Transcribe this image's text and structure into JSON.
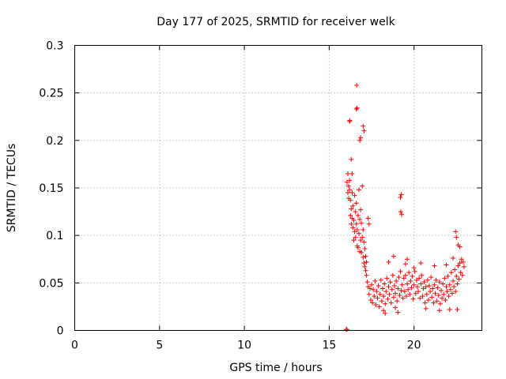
{
  "chart_data": {
    "type": "scatter",
    "title": "Day 177 of 2025, SRMTID for receiver welk",
    "xlabel": "GPS time / hours",
    "ylabel": "SRMTID / TECUs",
    "xlim": [
      0,
      24
    ],
    "ylim": [
      0,
      0.3
    ],
    "xticks": [
      0,
      5,
      10,
      15,
      20
    ],
    "xtick_labels": [
      "0",
      "5",
      "10",
      "15",
      "20"
    ],
    "yticks": [
      0,
      0.05,
      0.1,
      0.15,
      0.2,
      0.25,
      0.3
    ],
    "ytick_labels": [
      "0",
      "0.05",
      "0.1",
      "0.15",
      "0.2",
      "0.25",
      "0.3"
    ],
    "grid": true,
    "marker": "+",
    "series": [
      {
        "name": "SRMTID",
        "color": "#ff0000",
        "x": [
          16.0,
          16.05,
          16.05,
          16.1,
          16.1,
          16.15,
          16.15,
          16.2,
          16.2,
          16.25,
          16.25,
          16.3,
          16.3,
          16.35,
          16.35,
          16.4,
          16.4,
          16.45,
          16.45,
          16.5,
          16.5,
          16.55,
          16.55,
          16.6,
          16.6,
          16.65,
          16.65,
          16.7,
          16.7,
          16.75,
          16.75,
          16.8,
          16.8,
          16.85,
          16.85,
          16.9,
          16.9,
          16.95,
          16.95,
          17.0,
          17.0,
          17.05,
          17.05,
          17.1,
          17.1,
          17.15,
          17.15,
          17.2,
          17.2,
          17.25,
          17.3,
          17.35,
          17.4,
          17.45,
          17.5,
          17.55,
          17.6,
          17.65,
          17.7,
          17.75,
          17.8,
          17.85,
          17.9,
          17.95,
          18.0,
          18.05,
          18.1,
          18.15,
          18.2,
          18.25,
          18.3,
          18.35,
          18.4,
          18.45,
          18.5,
          18.55,
          18.6,
          18.65,
          18.7,
          18.75,
          18.8,
          18.85,
          18.9,
          18.95,
          19.0,
          19.05,
          19.1,
          19.15,
          19.2,
          19.25,
          19.3,
          19.35,
          19.4,
          19.45,
          19.5,
          19.55,
          19.6,
          19.65,
          19.7,
          19.75,
          19.8,
          19.85,
          19.9,
          19.95,
          20.0,
          20.05,
          20.1,
          20.15,
          20.2,
          20.25,
          20.3,
          20.35,
          20.4,
          20.45,
          20.5,
          20.55,
          20.6,
          20.65,
          20.7,
          20.75,
          20.8,
          20.85,
          20.9,
          20.95,
          21.0,
          21.05,
          21.1,
          21.15,
          21.2,
          21.25,
          21.3,
          21.35,
          21.4,
          21.45,
          21.5,
          21.55,
          21.6,
          21.65,
          21.7,
          21.75,
          21.8,
          21.85,
          21.9,
          21.95,
          22.0,
          22.05,
          22.1,
          22.15,
          22.2,
          22.25,
          22.3,
          22.35,
          22.4,
          22.45,
          22.5,
          22.55,
          22.6,
          22.65,
          22.7,
          22.75,
          22.8,
          22.85,
          22.9,
          22.95,
          16.2,
          16.22,
          16.3,
          16.35,
          16.6,
          16.65,
          16.62,
          17.0,
          17.05,
          16.8,
          16.85,
          19.2,
          19.25,
          19.22,
          19.27,
          22.45,
          22.5,
          22.6,
          22.7,
          17.3,
          17.35,
          18.5,
          18.8,
          19.5,
          19.6,
          20.0,
          20.4,
          21.2,
          21.9,
          22.3,
          18.2,
          18.3,
          18.9,
          19.05,
          20.7,
          21.5,
          22.1,
          22.55
        ],
        "y": [
          0.001,
          0.001,
          0.156,
          0.145,
          0.165,
          0.152,
          0.139,
          0.148,
          0.158,
          0.121,
          0.137,
          0.112,
          0.128,
          0.145,
          0.118,
          0.108,
          0.131,
          0.095,
          0.116,
          0.142,
          0.104,
          0.125,
          0.098,
          0.112,
          0.134,
          0.089,
          0.106,
          0.121,
          0.087,
          0.148,
          0.102,
          0.117,
          0.083,
          0.127,
          0.095,
          0.113,
          0.082,
          0.152,
          0.098,
          0.106,
          0.077,
          0.093,
          0.071,
          0.086,
          0.067,
          0.078,
          0.063,
          0.072,
          0.058,
          0.051,
          0.046,
          0.038,
          0.044,
          0.032,
          0.048,
          0.029,
          0.043,
          0.036,
          0.052,
          0.027,
          0.041,
          0.034,
          0.047,
          0.025,
          0.038,
          0.053,
          0.031,
          0.044,
          0.036,
          0.049,
          0.028,
          0.041,
          0.055,
          0.033,
          0.046,
          0.038,
          0.051,
          0.029,
          0.043,
          0.058,
          0.035,
          0.047,
          0.039,
          0.052,
          0.031,
          0.044,
          0.056,
          0.037,
          0.062,
          0.042,
          0.048,
          0.034,
          0.055,
          0.041,
          0.058,
          0.036,
          0.049,
          0.043,
          0.061,
          0.038,
          0.052,
          0.045,
          0.057,
          0.033,
          0.048,
          0.062,
          0.039,
          0.053,
          0.046,
          0.041,
          0.055,
          0.034,
          0.049,
          0.058,
          0.036,
          0.044,
          0.051,
          0.029,
          0.046,
          0.038,
          0.053,
          0.032,
          0.047,
          0.041,
          0.056,
          0.035,
          0.044,
          0.029,
          0.048,
          0.039,
          0.053,
          0.031,
          0.045,
          0.037,
          0.051,
          0.028,
          0.042,
          0.034,
          0.049,
          0.038,
          0.055,
          0.032,
          0.046,
          0.041,
          0.057,
          0.036,
          0.048,
          0.043,
          0.061,
          0.039,
          0.052,
          0.046,
          0.064,
          0.041,
          0.057,
          0.049,
          0.068,
          0.054,
          0.071,
          0.061,
          0.075,
          0.058,
          0.072,
          0.067,
          0.22,
          0.221,
          0.18,
          0.165,
          0.233,
          0.234,
          0.258,
          0.215,
          0.21,
          0.2,
          0.203,
          0.14,
          0.143,
          0.125,
          0.122,
          0.104,
          0.098,
          0.09,
          0.088,
          0.118,
          0.112,
          0.072,
          0.078,
          0.07,
          0.075,
          0.066,
          0.071,
          0.068,
          0.069,
          0.076,
          0.021,
          0.018,
          0.024,
          0.019,
          0.023,
          0.021,
          0.022,
          0.022
        ]
      }
    ]
  }
}
